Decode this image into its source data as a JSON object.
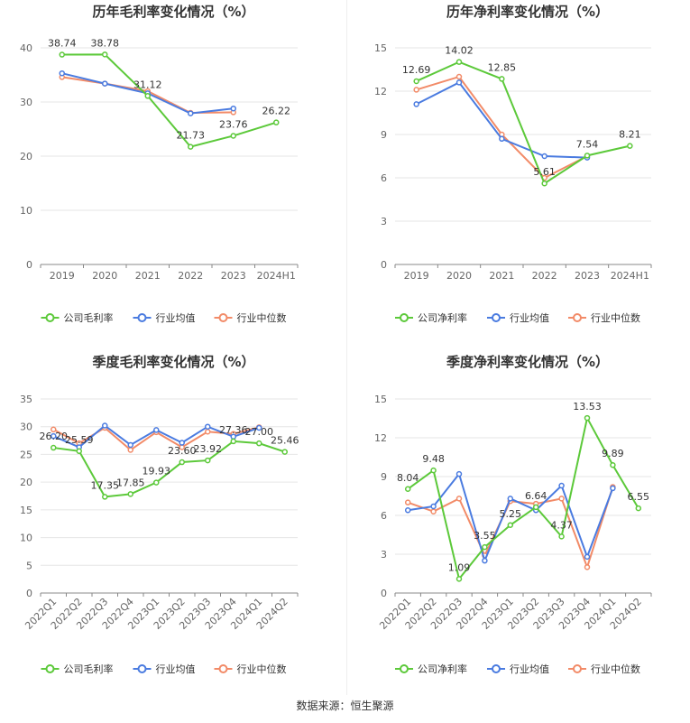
{
  "source": "数据来源：恒生聚源",
  "legend": {
    "company_gross": "公司毛利率",
    "company_net": "公司净利率",
    "industry_avg": "行业均值",
    "industry_median": "行业中位数"
  },
  "colors": {
    "company": "#5cc93a",
    "avg": "#4a7be0",
    "median": "#f28b68"
  },
  "chart_data": [
    {
      "type": "line",
      "title": "历年毛利率变化情况（%）",
      "categories": [
        "2019",
        "2020",
        "2021",
        "2022",
        "2023",
        "2024H1"
      ],
      "ylim": [
        0,
        40
      ],
      "yticks": [
        0,
        10,
        20,
        30,
        40
      ],
      "legend_position": "bottom",
      "series": [
        {
          "name": "公司毛利率",
          "values": [
            38.74,
            38.78,
            31.12,
            21.73,
            23.76,
            26.22
          ],
          "labels": [
            "38.74",
            "38.78",
            "31.12",
            "21.73",
            "23.76",
            "26.22"
          ]
        },
        {
          "name": "行业均值",
          "values": [
            35.3,
            33.4,
            31.6,
            27.9,
            28.8,
            null
          ]
        },
        {
          "name": "行业中位数",
          "values": [
            34.6,
            33.4,
            32.0,
            28.0,
            28.1,
            null
          ]
        }
      ]
    },
    {
      "type": "line",
      "title": "历年净利率变化情况（%）",
      "categories": [
        "2019",
        "2020",
        "2021",
        "2022",
        "2023",
        "2024H1"
      ],
      "ylim": [
        0,
        15
      ],
      "yticks": [
        0,
        3,
        6,
        9,
        12,
        15
      ],
      "legend_position": "bottom",
      "series": [
        {
          "name": "公司净利率",
          "values": [
            12.69,
            14.02,
            12.85,
            5.61,
            7.54,
            8.21
          ],
          "labels": [
            "12.69",
            "14.02",
            "12.85",
            "5.61",
            "7.54",
            "8.21"
          ]
        },
        {
          "name": "行业均值",
          "values": [
            11.1,
            12.6,
            8.7,
            7.5,
            7.4,
            null
          ]
        },
        {
          "name": "行业中位数",
          "values": [
            12.1,
            13.0,
            9.0,
            6.0,
            7.5,
            null
          ]
        }
      ]
    },
    {
      "type": "line",
      "title": "季度毛利率变化情况（%）",
      "categories": [
        "2022Q1",
        "2022Q2",
        "2022Q3",
        "2022Q4",
        "2023Q1",
        "2023Q2",
        "2023Q3",
        "2023Q4",
        "2024Q1",
        "2024Q2"
      ],
      "ylim": [
        0,
        35
      ],
      "yticks": [
        0,
        5,
        10,
        15,
        20,
        25,
        30,
        35
      ],
      "legend_position": "bottom",
      "series": [
        {
          "name": "公司毛利率",
          "values": [
            26.2,
            25.59,
            17.35,
            17.85,
            19.93,
            23.6,
            23.92,
            27.36,
            27.0,
            25.46
          ],
          "labels": [
            "26.20",
            "25.59",
            "17.35",
            "17.85",
            "19.93",
            "23.60",
            "23.92",
            "27.36",
            "27.00",
            "25.46"
          ]
        },
        {
          "name": "行业均值",
          "values": [
            28.3,
            26.3,
            30.2,
            26.7,
            29.4,
            27.1,
            30.0,
            28.2,
            29.8,
            null
          ]
        },
        {
          "name": "行业中位数",
          "values": [
            29.5,
            27.0,
            29.8,
            25.8,
            29.0,
            26.3,
            29.1,
            28.7,
            29.9,
            null
          ]
        }
      ]
    },
    {
      "type": "line",
      "title": "季度净利率变化情况（%）",
      "categories": [
        "2022Q1",
        "2022Q2",
        "2022Q3",
        "2022Q4",
        "2023Q1",
        "2023Q2",
        "2023Q3",
        "2023Q4",
        "2024Q1",
        "2024Q2"
      ],
      "ylim": [
        0,
        15
      ],
      "yticks": [
        0,
        3,
        6,
        9,
        12,
        15
      ],
      "legend_position": "bottom",
      "series": [
        {
          "name": "公司净利率",
          "values": [
            8.04,
            9.48,
            1.09,
            3.55,
            5.25,
            6.64,
            4.37,
            13.53,
            9.89,
            6.55
          ],
          "labels": [
            "8.04",
            "9.48",
            "1.09",
            "3.55",
            "5.25",
            "6.64",
            "4.37",
            "13.53",
            "9.89",
            "6.55"
          ]
        },
        {
          "name": "行业均值",
          "values": [
            6.4,
            6.7,
            9.2,
            2.5,
            7.3,
            6.4,
            8.3,
            2.8,
            8.1,
            null
          ]
        },
        {
          "name": "行业中位数",
          "values": [
            7.0,
            6.3,
            7.3,
            2.9,
            7.1,
            6.9,
            7.3,
            2.0,
            8.2,
            null
          ]
        }
      ]
    }
  ]
}
